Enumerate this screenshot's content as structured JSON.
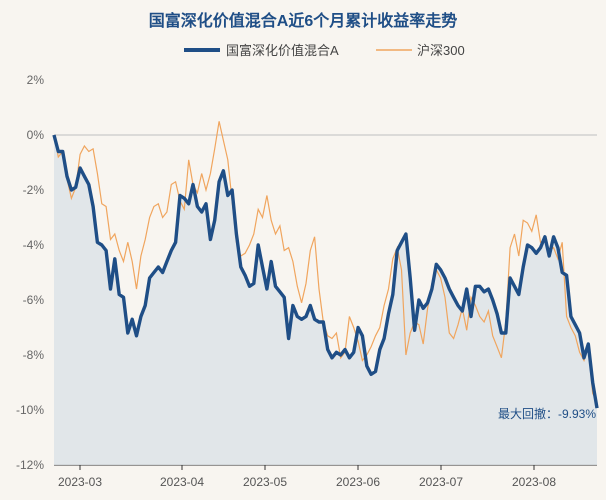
{
  "chart_data": {
    "type": "line",
    "title": "国富深化价值混合A近6个月累计收益率走势",
    "ylim": [
      -12,
      2
    ],
    "yticks": [
      2,
      0,
      -2,
      -4,
      -6,
      -8,
      -10,
      -12
    ],
    "ytick_labels": [
      "2%",
      "0%",
      "-2%",
      "-4%",
      "-6%",
      "-8%",
      "-10%",
      "-12%"
    ],
    "xtick_labels": [
      "2023-03",
      "2023-04",
      "2023-05",
      "2023-06",
      "2023-07",
      "2023-08"
    ],
    "legend_position": "top-center",
    "grid": "horizontal zero line only",
    "annotation": {
      "label": "最大回撤：-9.93%",
      "value": -9.93
    },
    "series": [
      {
        "name": "国富深化价值混合A",
        "color": "#1f4e86",
        "fill": "#dde3e8",
        "values": [
          0.0,
          -0.6,
          -0.6,
          -1.5,
          -2.0,
          -1.9,
          -1.2,
          -1.5,
          -1.8,
          -2.6,
          -3.9,
          -4.0,
          -4.2,
          -5.6,
          -4.5,
          -5.8,
          -5.9,
          -7.2,
          -6.7,
          -7.3,
          -6.6,
          -6.2,
          -5.2,
          -5.0,
          -4.8,
          -5.0,
          -4.6,
          -4.2,
          -3.9,
          -2.2,
          -2.3,
          -2.5,
          -1.8,
          -2.6,
          -2.8,
          -2.5,
          -3.8,
          -3.1,
          -1.7,
          -1.3,
          -2.2,
          -2.0,
          -3.6,
          -4.8,
          -5.1,
          -5.5,
          -5.4,
          -4.0,
          -4.8,
          -5.6,
          -4.6,
          -5.5,
          -5.7,
          -5.9,
          -7.4,
          -6.2,
          -6.6,
          -6.7,
          -6.6,
          -6.2,
          -6.7,
          -6.8,
          -6.8,
          -7.8,
          -8.1,
          -7.9,
          -8.0,
          -7.8,
          -8.1,
          -7.9,
          -7.0,
          -7.3,
          -8.4,
          -8.7,
          -8.6,
          -7.8,
          -7.4,
          -6.5,
          -5.8,
          -4.2,
          -3.9,
          -3.6,
          -5.2,
          -7.1,
          -6.0,
          -6.3,
          -6.1,
          -5.6,
          -4.7,
          -4.9,
          -5.2,
          -5.6,
          -5.9,
          -6.2,
          -6.4,
          -5.6,
          -6.6,
          -5.5,
          -5.5,
          -5.7,
          -5.6,
          -6.0,
          -6.5,
          -7.2,
          -7.2,
          -5.2,
          -5.5,
          -5.8,
          -4.8,
          -4.0,
          -4.1,
          -4.3,
          -4.1,
          -3.7,
          -4.4,
          -3.7,
          -4.1,
          -5.0,
          -5.1,
          -6.6,
          -6.9,
          -7.2,
          -8.1,
          -7.6,
          -9.0,
          -9.93
        ]
      },
      {
        "name": "沪深300",
        "color": "#f0a55e",
        "values": [
          0.0,
          -0.8,
          -0.6,
          -1.6,
          -2.3,
          -1.9,
          -0.7,
          -0.4,
          -0.6,
          -0.5,
          -1.4,
          -2.5,
          -2.6,
          -3.8,
          -3.6,
          -4.2,
          -4.6,
          -3.9,
          -4.6,
          -5.6,
          -4.4,
          -3.8,
          -3.0,
          -2.6,
          -2.5,
          -3.0,
          -2.8,
          -1.8,
          -1.7,
          -2.4,
          -2.7,
          -0.9,
          -1.8,
          -2.1,
          -1.4,
          -2.0,
          -1.4,
          -0.5,
          0.5,
          -0.2,
          -0.9,
          -2.4,
          -3.9,
          -4.4,
          -4.3,
          -4.0,
          -3.6,
          -2.7,
          -3.0,
          -2.2,
          -3.1,
          -3.6,
          -3.3,
          -4.2,
          -4.1,
          -4.6,
          -5.5,
          -6.1,
          -5.4,
          -4.2,
          -3.7,
          -5.6,
          -6.8,
          -7.3,
          -7.4,
          -7.2,
          -8.1,
          -7.9,
          -6.6,
          -7.0,
          -7.5,
          -8.2,
          -8.0,
          -7.7,
          -7.3,
          -7.0,
          -6.2,
          -5.6,
          -4.5,
          -4.1,
          -4.9,
          -8.0,
          -7.2,
          -6.8,
          -6.9,
          -7.6,
          -6.3,
          -5.4,
          -4.9,
          -5.2,
          -5.9,
          -7.2,
          -7.4,
          -6.9,
          -6.3,
          -7.1,
          -5.9,
          -6.2,
          -6.6,
          -6.8,
          -6.4,
          -7.3,
          -7.7,
          -8.1,
          -6.8,
          -4.1,
          -3.6,
          -4.4,
          -3.1,
          -3.2,
          -3.5,
          -2.9,
          -3.9,
          -3.8,
          -4.2,
          -4.1,
          -4.5,
          -3.9,
          -6.6,
          -7.0,
          -7.3,
          -7.9,
          -8.2,
          -7.7,
          -9.4,
          -9.7
        ]
      }
    ]
  }
}
